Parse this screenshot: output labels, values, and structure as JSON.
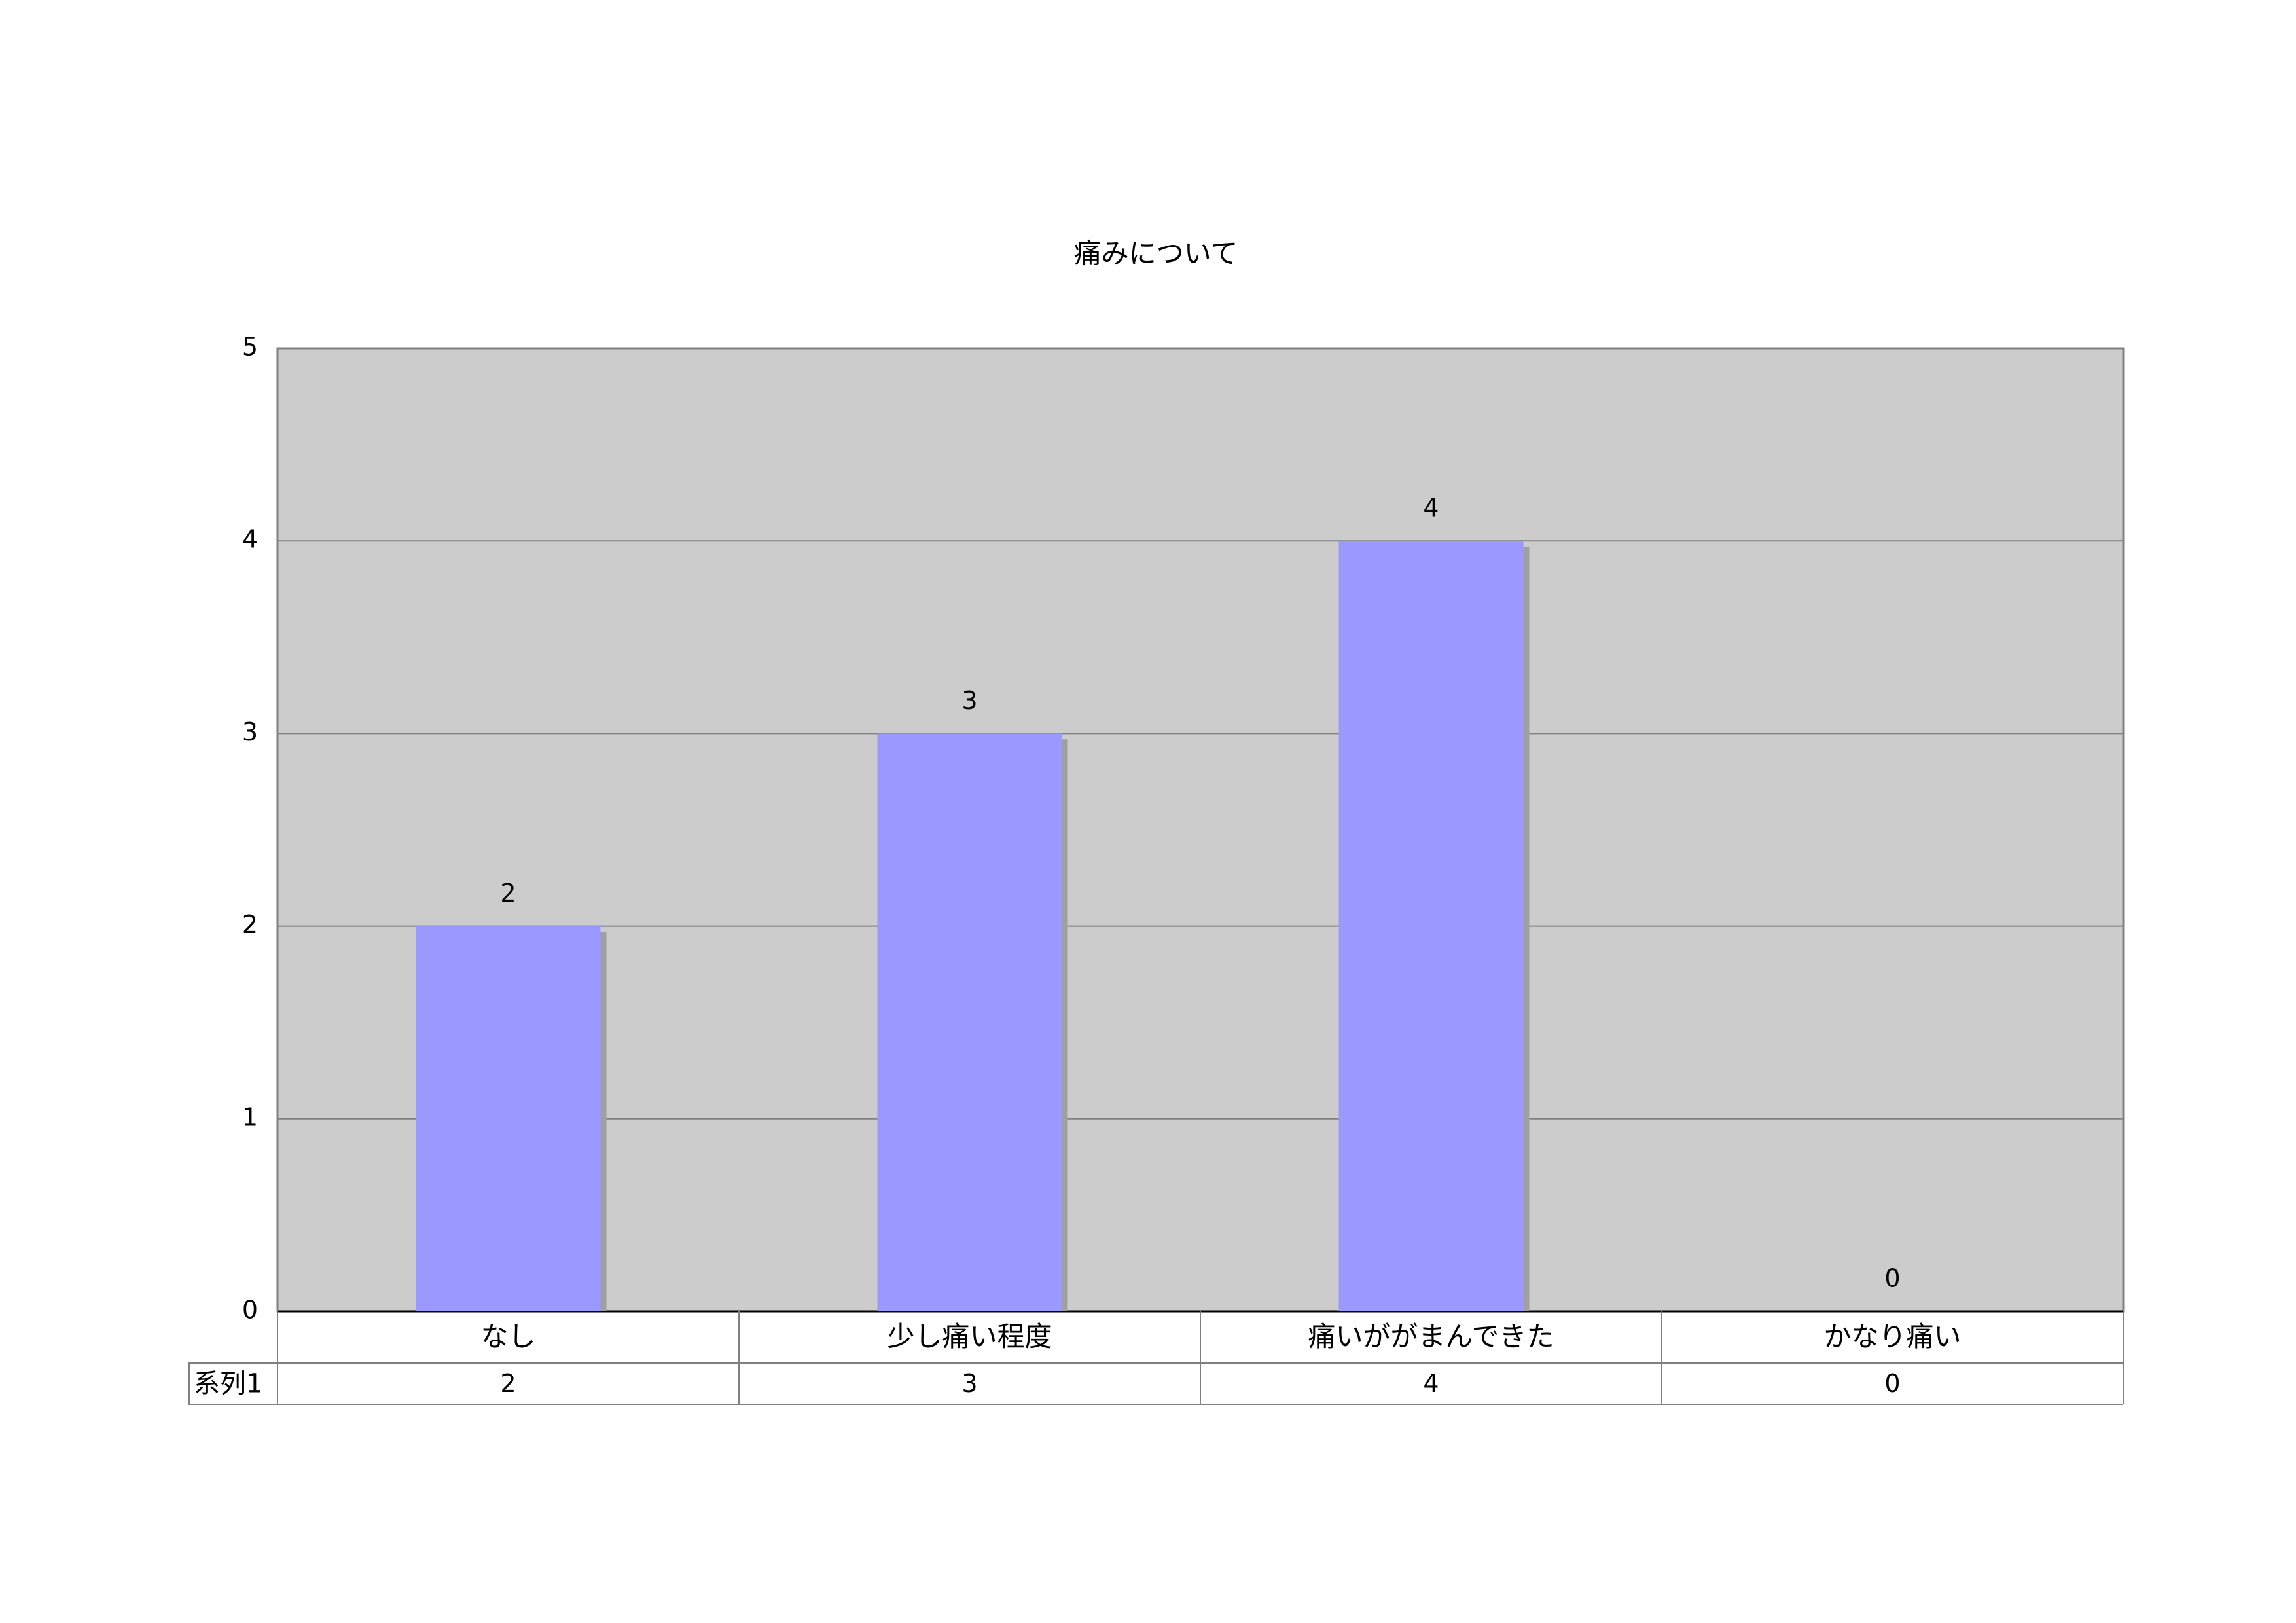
{
  "chart_data": {
    "type": "bar",
    "title": "痛みについて",
    "categories": [
      "なし",
      "少し痛い程度",
      "痛いががまんできた",
      "かなり痛い"
    ],
    "series": [
      {
        "name": "系列1",
        "color": "#9999ff",
        "values": [
          2,
          3,
          4,
          0
        ]
      }
    ],
    "ylim": [
      0,
      5
    ],
    "yticks": [
      0,
      1,
      2,
      3,
      4,
      5
    ],
    "grid": true,
    "data_table": true
  }
}
